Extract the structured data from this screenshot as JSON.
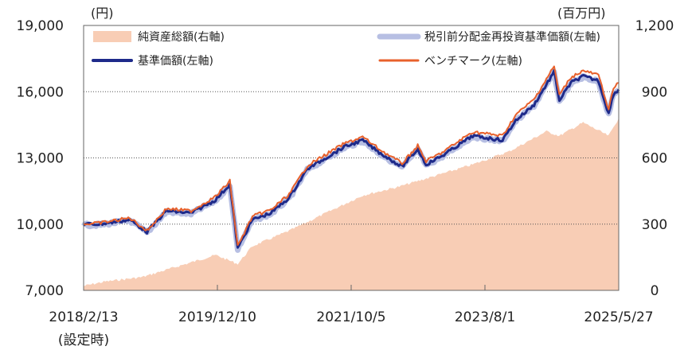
{
  "chart_data": {
    "type": "line",
    "ylabel_left": "(円)",
    "ylabel_right": "(百万円)",
    "y_left": {
      "min": 7000,
      "max": 19000,
      "ticks": [
        7000,
        10000,
        13000,
        16000,
        19000
      ],
      "tick_labels": [
        "7,000",
        "10,000",
        "13,000",
        "16,000",
        "19,000"
      ]
    },
    "y_right": {
      "min": 0,
      "max": 1200,
      "ticks": [
        0,
        300,
        600,
        900,
        1200
      ],
      "tick_labels": [
        "0",
        "300",
        "600",
        "900",
        "1,200"
      ]
    },
    "x_range": [
      "2018-02-13",
      "2025-05-27"
    ],
    "x_ticks": [
      "2018-02-13",
      "2019-12-10",
      "2021-10-05",
      "2023-08-01",
      "2025-05-27"
    ],
    "x_tick_labels": [
      "2018/2/13",
      "2019/12/10",
      "2021/10/5",
      "2023/8/1",
      "2025/5/27"
    ],
    "x_sublabel": "(設定時)",
    "grid": "horizontal-dotted",
    "legend_position": "top",
    "series": [
      {
        "name": "純資産総額(右軸)",
        "axis": "right",
        "style": "area",
        "color": "#f8cdb5",
        "x": [
          "2018-02-13",
          "2018-06-01",
          "2018-12-01",
          "2019-06-01",
          "2019-12-01",
          "2020-03-20",
          "2020-06-01",
          "2020-12-01",
          "2021-06-01",
          "2021-12-01",
          "2022-06-01",
          "2022-12-01",
          "2023-06-01",
          "2023-12-01",
          "2024-06-01",
          "2024-08-05",
          "2024-12-01",
          "2025-04-07",
          "2025-05-27"
        ],
        "y": [
          20,
          40,
          60,
          110,
          160,
          120,
          200,
          270,
          350,
          430,
          470,
          520,
          570,
          630,
          720,
          700,
          760,
          700,
          780
        ]
      },
      {
        "name": "税引前分配金再投資基準価額(左軸)",
        "axis": "left",
        "style": "line",
        "color": "#b7bfe3",
        "x": [
          "2018-02-13",
          "2018-05-01",
          "2018-10-01",
          "2018-12-25",
          "2019-04-01",
          "2019-08-01",
          "2019-12-01",
          "2020-02-10",
          "2020-03-20",
          "2020-06-01",
          "2020-09-01",
          "2020-12-01",
          "2021-03-01",
          "2021-06-01",
          "2021-09-01",
          "2021-12-01",
          "2022-03-01",
          "2022-06-15",
          "2022-09-01",
          "2022-10-12",
          "2023-01-01",
          "2023-06-01",
          "2023-10-27",
          "2024-01-01",
          "2024-04-01",
          "2024-07-10",
          "2024-08-05",
          "2024-10-01",
          "2024-12-01",
          "2025-02-15",
          "2025-04-07",
          "2025-05-01",
          "2025-05-27"
        ],
        "y": [
          10000,
          10000,
          10200,
          9650,
          10600,
          10500,
          11100,
          11800,
          8900,
          10200,
          10500,
          11200,
          12500,
          13000,
          13500,
          13800,
          13200,
          12600,
          13400,
          12700,
          13100,
          14000,
          13800,
          14700,
          15400,
          16900,
          15600,
          16400,
          16700,
          16500,
          15000,
          15900,
          16100
        ]
      },
      {
        "name": "基準価額(左軸)",
        "axis": "left",
        "style": "line",
        "color": "#1e2a8a",
        "x": [
          "2018-02-13",
          "2018-05-01",
          "2018-10-01",
          "2018-12-25",
          "2019-04-01",
          "2019-08-01",
          "2019-12-01",
          "2020-02-10",
          "2020-03-20",
          "2020-06-01",
          "2020-09-01",
          "2020-12-01",
          "2021-03-01",
          "2021-06-01",
          "2021-09-01",
          "2021-12-01",
          "2022-03-01",
          "2022-06-15",
          "2022-09-01",
          "2022-10-12",
          "2023-01-01",
          "2023-06-01",
          "2023-10-27",
          "2024-01-01",
          "2024-04-01",
          "2024-07-10",
          "2024-08-05",
          "2024-10-01",
          "2024-12-01",
          "2025-02-15",
          "2025-04-07",
          "2025-05-01",
          "2025-05-27"
        ],
        "y": [
          10000,
          10000,
          10200,
          9650,
          10600,
          10500,
          11100,
          11800,
          8900,
          10200,
          10500,
          11200,
          12500,
          13000,
          13500,
          13800,
          13200,
          12600,
          13400,
          12700,
          13100,
          14000,
          13800,
          14700,
          15400,
          16900,
          15600,
          16400,
          16700,
          16500,
          15000,
          15900,
          16100
        ]
      },
      {
        "name": "ベンチマーク(左軸)",
        "axis": "left",
        "style": "line",
        "color": "#e8612c",
        "x": [
          "2018-02-13",
          "2018-05-01",
          "2018-10-01",
          "2018-12-25",
          "2019-04-01",
          "2019-08-01",
          "2019-12-01",
          "2020-02-10",
          "2020-03-20",
          "2020-06-01",
          "2020-09-01",
          "2020-12-01",
          "2021-03-01",
          "2021-06-01",
          "2021-09-01",
          "2021-12-01",
          "2022-03-01",
          "2022-06-15",
          "2022-09-01",
          "2022-10-12",
          "2023-01-01",
          "2023-06-01",
          "2023-10-27",
          "2024-01-01",
          "2024-04-01",
          "2024-07-10",
          "2024-08-05",
          "2024-10-01",
          "2024-12-01",
          "2025-02-15",
          "2025-04-07",
          "2025-05-01",
          "2025-05-27"
        ],
        "y": [
          10000,
          10050,
          10280,
          9700,
          10700,
          10600,
          11250,
          11950,
          9000,
          10350,
          10650,
          11350,
          12650,
          13150,
          13650,
          13950,
          13350,
          12750,
          13550,
          12850,
          13250,
          14180,
          14000,
          14950,
          15650,
          17150,
          15850,
          16650,
          16950,
          16750,
          15200,
          16150,
          16400
        ]
      }
    ]
  }
}
